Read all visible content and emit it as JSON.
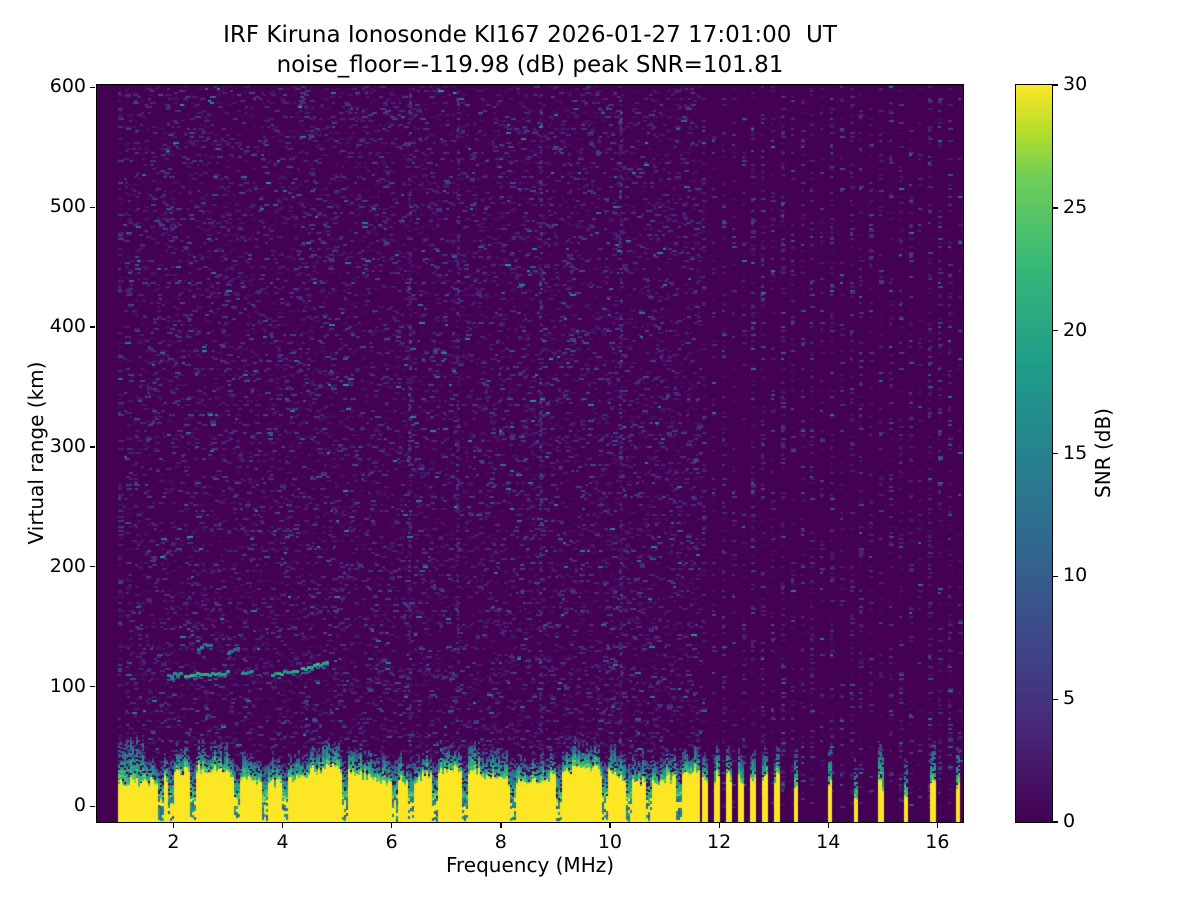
{
  "chart_data": {
    "type": "heatmap",
    "title_line1": "IRF Kiruna Ionosonde KI167 2026-01-27 17:01:00  UT",
    "title_line2": "noise_floor=-119.98 (dB) peak SNR=101.81",
    "xlabel": "Frequency (MHz)",
    "ylabel": "Virtual range (km)",
    "colorbar_label": "SNR (dB)",
    "xlim": [
      0.6,
      16.47
    ],
    "ylim": [
      -13,
      602
    ],
    "xticks": [
      2,
      4,
      6,
      8,
      10,
      12,
      14,
      16
    ],
    "yticks": [
      0,
      100,
      200,
      300,
      400,
      500,
      600
    ],
    "colorbar_ticks": [
      0,
      5,
      10,
      15,
      20,
      25,
      30
    ],
    "snr_range_db": [
      0,
      30
    ],
    "colormap": "viridis",
    "colormap_stops": [
      [
        0.0,
        "#440154"
      ],
      [
        0.125,
        "#482878"
      ],
      [
        0.25,
        "#3e4989"
      ],
      [
        0.375,
        "#31688e"
      ],
      [
        0.5,
        "#26828e"
      ],
      [
        0.625,
        "#1f9e89"
      ],
      [
        0.75,
        "#35b779"
      ],
      [
        0.875,
        "#6ece58"
      ],
      [
        0.9375,
        "#b5de2b"
      ],
      [
        1.0,
        "#fde725"
      ]
    ],
    "seed": 11,
    "sweep": {
      "f_start": 1.0,
      "f_end": 11.65
    },
    "noise": {
      "row_step": 2,
      "density_base": 0.24,
      "density_jitter": 0.2,
      "max_db": 8,
      "hot_prob": 0.03,
      "hot_db_min": 8,
      "hot_db_max": 16,
      "rare_prob": 0.004,
      "rare_db_min": 14,
      "rare_db_max": 20
    },
    "dense_noise_columns_mhz": [
      6.33,
      7.2,
      8.72,
      10.2
    ],
    "rfi_columns": {
      "f_start": 11.72,
      "f_end": 16.44,
      "spacing_mhz": 0.18,
      "density": 0.2
    },
    "ground_band": {
      "top_km_base": 26,
      "top_km_wiggle": 6,
      "top_km_jitter": 8,
      "teal_extent_km_base": 14,
      "teal_extent_km_jitter": 10,
      "left_edge_tall_fringe_below_mhz": 1.45,
      "left_edge_extra_km": 18,
      "yellow_db": 30
    },
    "band_notches_mhz": [
      1.75,
      1.92,
      2.34,
      3.16,
      3.67,
      4.02,
      5.12,
      6.06,
      6.33,
      6.77,
      7.34,
      8.2,
      9.05,
      9.9,
      10.33,
      10.7,
      11.23
    ],
    "band_stripes": {
      "f_start": 11.73,
      "f_end": 13.05,
      "period_mhz": 0.218,
      "half_width_mhz": 0.05
    },
    "isolated_stripes": [
      {
        "f": 13.4,
        "s": 1.0
      },
      {
        "f": 14.0,
        "s": 1.0
      },
      {
        "f": 14.5,
        "s": 0.6
      },
      {
        "f": 14.95,
        "s": 1.0
      },
      {
        "f": 15.4,
        "s": 0.6
      },
      {
        "f": 15.9,
        "s": 1.0
      },
      {
        "f": 16.36,
        "s": 1.0
      }
    ],
    "echo_trace_segments": [
      {
        "f0": 1.9,
        "f1": 2.15,
        "r0": 109,
        "r1": 110,
        "db": 16
      },
      {
        "f0": 2.2,
        "f1": 2.7,
        "r0": 109,
        "r1": 111,
        "db": 21
      },
      {
        "f0": 2.75,
        "f1": 3.0,
        "r0": 110,
        "r1": 112,
        "db": 18
      },
      {
        "f0": 2.45,
        "f1": 2.72,
        "r0": 132,
        "r1": 136,
        "db": 14
      },
      {
        "f0": 3.0,
        "f1": 3.2,
        "r0": 128,
        "r1": 131,
        "db": 13
      },
      {
        "f0": 3.25,
        "f1": 3.45,
        "r0": 110,
        "r1": 112,
        "db": 17
      },
      {
        "f0": 3.8,
        "f1": 4.25,
        "r0": 109,
        "r1": 114,
        "db": 19
      },
      {
        "f0": 4.35,
        "f1": 4.8,
        "r0": 114,
        "r1": 120,
        "db": 21
      }
    ]
  }
}
